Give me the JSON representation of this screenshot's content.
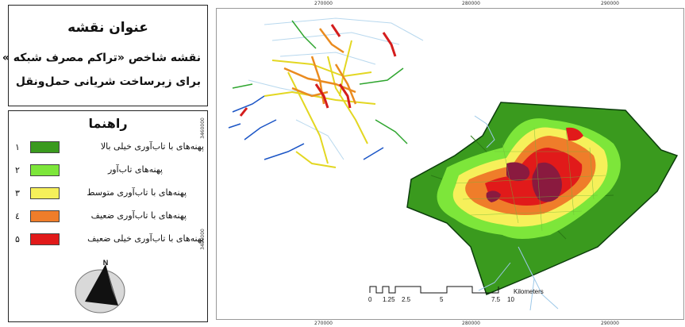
{
  "title_box": {
    "heading": "عنوان نقشه",
    "line1": "نقشه شاخص «تراکم مصرف شبکه »",
    "line2": "برای زیرساخت شریانی حمل‌ونقل"
  },
  "legend": {
    "heading": "راهنما",
    "items": [
      {
        "num": "۱",
        "label": "پهنه‌های با تاب‌آوری خیلی بالا",
        "color": "#3a9a1e"
      },
      {
        "num": "۲",
        "label": "پهنه‌های تاب‌آور",
        "color": "#7de63a"
      },
      {
        "num": "۳",
        "label": "پهنه‌های با تاب‌آوری متوسط",
        "color": "#f6f05a"
      },
      {
        "num": "٤",
        "label": "پهنه‌های با تاب‌آوری ضعیف",
        "color": "#ef7d2a"
      },
      {
        "num": "۵",
        "label": "پهنه‌های با تاب‌آوری خیلی ضعیف",
        "color": "#e11a1a"
      }
    ],
    "north_label": "N"
  },
  "map": {
    "top_ticks": [
      "270000",
      "280000",
      "290000"
    ],
    "bottom_ticks": [
      "270000",
      "280000",
      "290000"
    ],
    "left_ticks": [
      "3460000",
      "3450000"
    ],
    "scale_bar": {
      "labels": [
        "0",
        "1.25",
        "2.5",
        "5",
        "7.5",
        "10"
      ],
      "unit": "Kilometers"
    }
  }
}
